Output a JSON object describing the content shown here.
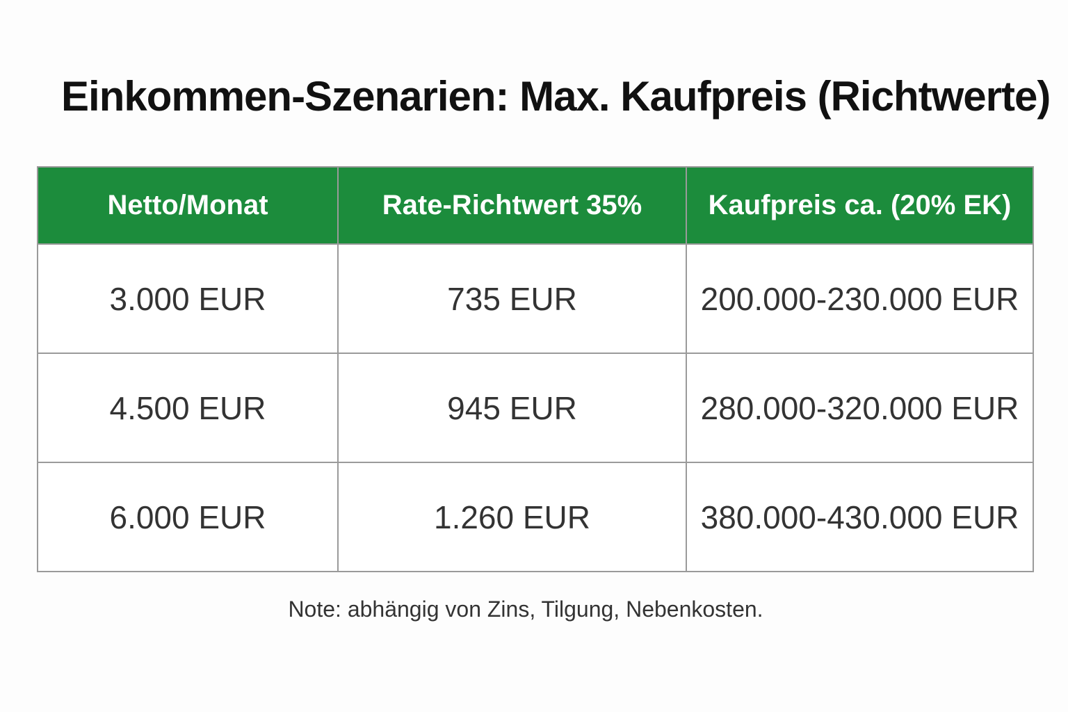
{
  "header": {
    "title": "Einkommen-Szenarien: Max. Kaufpreis (Richtwerte)"
  },
  "table": {
    "columns": [
      "Netto/Monat",
      "Rate-Richtwert 35%",
      "Kaufpreis ca. (20% EK)"
    ],
    "rows": [
      [
        "3.000 EUR",
        "735 EUR",
        "200.000-230.000 EUR"
      ],
      [
        "4.500 EUR",
        "945 EUR",
        "280.000-320.000 EUR"
      ],
      [
        "6.000 EUR",
        "1.260 EUR",
        "380.000-430.000 EUR"
      ]
    ]
  },
  "footer": {
    "note": "Note: abhängig von Zins, Tilgung, Nebenkosten."
  }
}
